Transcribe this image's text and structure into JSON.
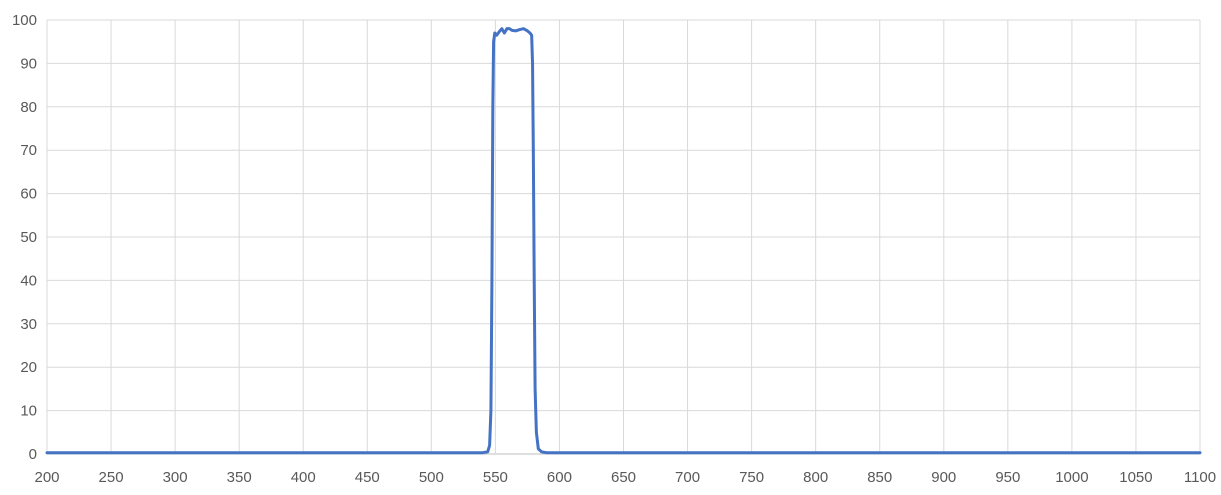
{
  "chart_data": {
    "type": "line",
    "title": "",
    "xlabel": "",
    "ylabel": "",
    "xlim": [
      200,
      1100
    ],
    "ylim": [
      0,
      100
    ],
    "x_ticks": [
      200,
      250,
      300,
      350,
      400,
      450,
      500,
      550,
      600,
      650,
      700,
      750,
      800,
      850,
      900,
      950,
      1000,
      1050,
      1100
    ],
    "y_ticks": [
      0,
      10,
      20,
      30,
      40,
      50,
      60,
      70,
      80,
      90,
      100
    ],
    "grid": true,
    "legend": "none",
    "colors": {
      "series": "#4472c4",
      "grid": "#d9d9d9",
      "text": "#595959"
    },
    "series": [
      {
        "name": "",
        "points": [
          [
            200,
            0.3
          ],
          [
            540,
            0.3
          ],
          [
            544,
            0.5
          ],
          [
            545.5,
            2
          ],
          [
            546.5,
            10
          ],
          [
            547.3,
            40
          ],
          [
            548,
            80
          ],
          [
            548.6,
            95
          ],
          [
            549.5,
            97
          ],
          [
            551,
            96.5
          ],
          [
            553,
            97.3
          ],
          [
            555,
            98
          ],
          [
            557,
            97
          ],
          [
            559,
            98
          ],
          [
            561,
            98
          ],
          [
            563,
            97.6
          ],
          [
            566,
            97.5
          ],
          [
            569,
            97.8
          ],
          [
            572,
            98
          ],
          [
            575,
            97.5
          ],
          [
            577,
            97
          ],
          [
            578.3,
            96.5
          ],
          [
            579,
            90
          ],
          [
            579.6,
            70
          ],
          [
            580.3,
            40
          ],
          [
            581,
            15
          ],
          [
            582,
            5
          ],
          [
            583.5,
            1.2
          ],
          [
            586,
            0.5
          ],
          [
            590,
            0.3
          ],
          [
            1100,
            0.3
          ]
        ]
      }
    ]
  }
}
